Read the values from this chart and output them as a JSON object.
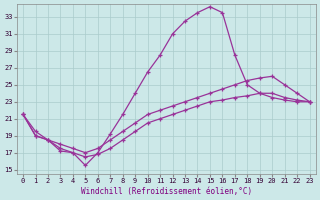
{
  "xlabel": "Windchill (Refroidissement éolien,°C)",
  "background_color": "#cce8e8",
  "grid_color": "#aacccc",
  "line_color": "#993399",
  "xlim": [
    -0.5,
    23.5
  ],
  "ylim": [
    14.5,
    34.5
  ],
  "yticks": [
    15,
    17,
    19,
    21,
    23,
    25,
    27,
    29,
    31,
    33
  ],
  "xticks": [
    0,
    1,
    2,
    3,
    4,
    5,
    6,
    7,
    8,
    9,
    10,
    11,
    12,
    13,
    14,
    15,
    16,
    17,
    18,
    19,
    20,
    21,
    22,
    23
  ],
  "curve1_x": [
    0,
    1,
    2,
    3,
    4,
    5,
    6,
    7,
    8,
    9,
    10,
    11,
    12,
    13,
    14,
    15,
    16,
    17,
    18,
    19,
    20,
    21,
    22,
    23
  ],
  "curve1_y": [
    21.5,
    19.0,
    18.5,
    17.2,
    17.0,
    15.5,
    17.0,
    19.2,
    21.5,
    24.0,
    26.5,
    28.5,
    31.0,
    32.5,
    33.5,
    34.2,
    33.5,
    28.5,
    25.0,
    24.0,
    23.5,
    23.2,
    23.0,
    23.0
  ],
  "curve2_x": [
    0,
    1,
    2,
    3,
    4,
    5,
    6,
    7,
    8,
    9,
    10,
    11,
    12,
    13,
    14,
    15,
    16,
    17,
    18,
    19,
    20,
    21,
    22,
    23
  ],
  "curve2_y": [
    21.5,
    19.5,
    18.5,
    18.0,
    17.5,
    17.0,
    17.5,
    18.5,
    19.5,
    20.5,
    21.5,
    22.0,
    22.5,
    23.0,
    23.5,
    24.0,
    24.5,
    25.0,
    25.5,
    25.8,
    26.0,
    25.0,
    24.0,
    23.0
  ],
  "curve3_x": [
    0,
    1,
    2,
    3,
    4,
    5,
    6,
    7,
    8,
    9,
    10,
    11,
    12,
    13,
    14,
    15,
    16,
    17,
    18,
    19,
    20,
    21,
    22,
    23
  ],
  "curve3_y": [
    21.5,
    19.0,
    18.5,
    17.5,
    17.0,
    16.5,
    16.8,
    17.5,
    18.5,
    19.5,
    20.5,
    21.0,
    21.5,
    22.0,
    22.5,
    23.0,
    23.2,
    23.5,
    23.7,
    24.0,
    24.0,
    23.5,
    23.2,
    23.0
  ]
}
